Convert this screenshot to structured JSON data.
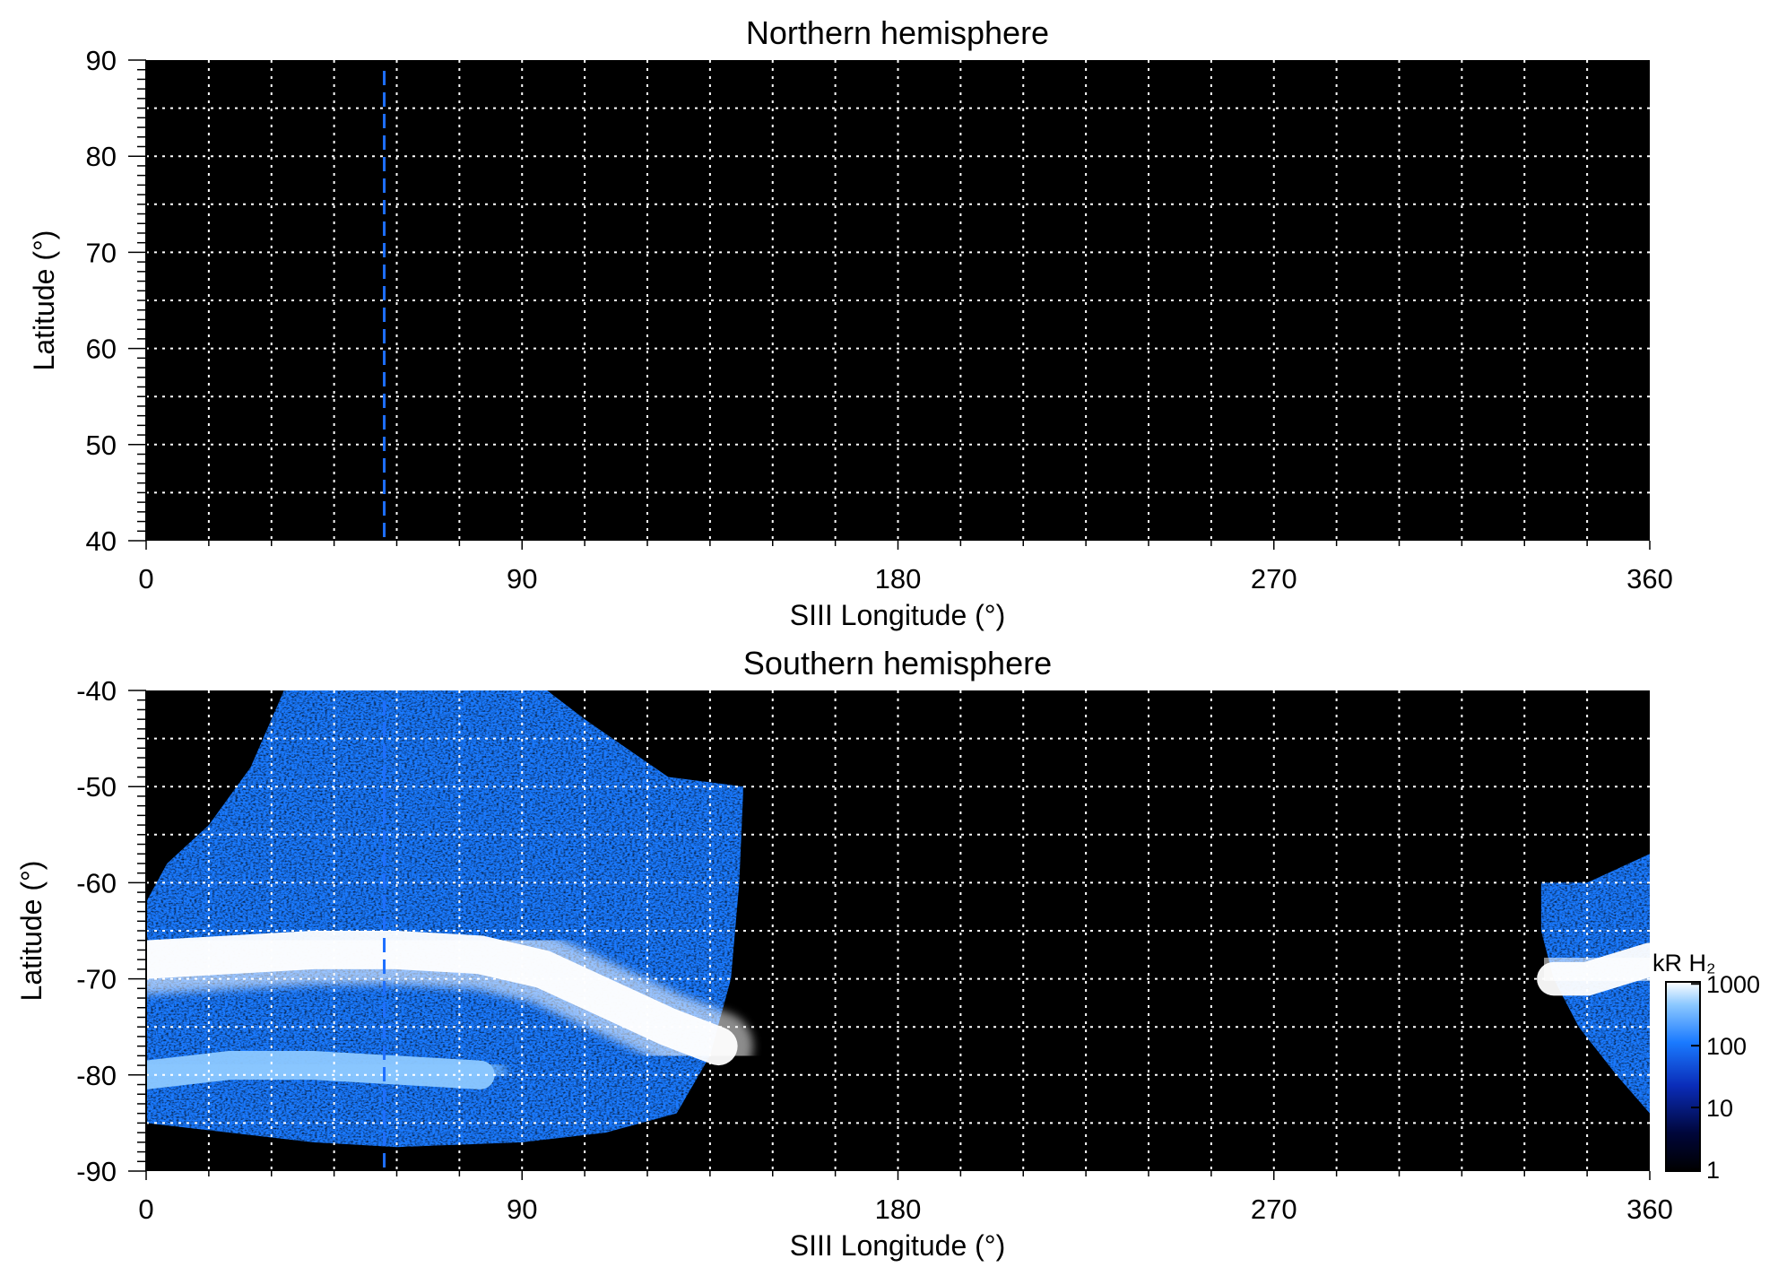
{
  "chart_data": [
    {
      "type": "heatmap",
      "title": "Northern hemisphere",
      "xlabel": "SIII Longitude (°)",
      "ylabel": "Latitude (°)",
      "xlim": [
        0,
        360
      ],
      "ylim": [
        40,
        90
      ],
      "x_ticks": [
        "0",
        "90",
        "180",
        "270",
        "360"
      ],
      "y_ticks": [
        "40",
        "50",
        "60",
        "70",
        "80",
        "90"
      ],
      "grid": true,
      "grid_style": "dotted white",
      "background": "#000000",
      "marker_line": {
        "longitude": 57,
        "color": "#1e6fff",
        "style": "dashed"
      },
      "emission": []
    },
    {
      "type": "heatmap",
      "title": "Southern hemisphere",
      "xlabel": "SIII Longitude (°)",
      "ylabel": "Latitude (°)",
      "xlim": [
        0,
        360
      ],
      "ylim": [
        -90,
        -40
      ],
      "x_ticks": [
        "0",
        "90",
        "180",
        "270",
        "360"
      ],
      "y_ticks": [
        "-40",
        "-50",
        "-60",
        "-70",
        "-80",
        "-90"
      ],
      "grid": true,
      "grid_style": "dotted white",
      "background": "#000000",
      "marker_line": {
        "longitude": 57,
        "color": "#1e6fff",
        "style": "dashed"
      },
      "emission": [
        {
          "region": "main-emission-region",
          "outline": [
            [
              0,
              -62
            ],
            [
              5,
              -58
            ],
            [
              15,
              -54
            ],
            [
              25,
              -48
            ],
            [
              30,
              -43
            ],
            [
              33,
              -40
            ],
            [
              96,
              -40
            ],
            [
              105,
              -43
            ],
            [
              115,
              -46
            ],
            [
              125,
              -49
            ],
            [
              143,
              -50
            ],
            [
              142,
              -60
            ],
            [
              140,
              -70
            ],
            [
              135,
              -78
            ],
            [
              127,
              -84
            ],
            [
              110,
              -86
            ],
            [
              90,
              -87
            ],
            [
              60,
              -87.5
            ],
            [
              40,
              -87
            ],
            [
              20,
              -86
            ],
            [
              0,
              -85
            ]
          ],
          "level_kR": 60
        },
        {
          "region": "main-oval-band",
          "band": [
            [
              0,
              -68
            ],
            [
              20,
              -67.5
            ],
            [
              40,
              -67
            ],
            [
              60,
              -67
            ],
            [
              80,
              -67.5
            ],
            [
              95,
              -69
            ],
            [
              110,
              -72
            ],
            [
              125,
              -75
            ],
            [
              137,
              -77
            ]
          ],
          "width_deg": 4,
          "level_kR": 1000
        },
        {
          "region": "secondary-band",
          "band": [
            [
              0,
              -80
            ],
            [
              20,
              -79
            ],
            [
              40,
              -79
            ],
            [
              60,
              -79.5
            ],
            [
              80,
              -80
            ]
          ],
          "width_deg": 3,
          "level_kR": 300
        },
        {
          "region": "right-edge-emission-region",
          "outline": [
            [
              334,
              -60
            ],
            [
              345,
              -60
            ],
            [
              360,
              -57
            ],
            [
              360,
              -84
            ],
            [
              352,
              -80
            ],
            [
              343,
              -75
            ],
            [
              337,
              -70
            ],
            [
              334,
              -65
            ]
          ],
          "level_kR": 60
        },
        {
          "region": "right-edge-oval-band",
          "band": [
            [
              337,
              -70
            ],
            [
              345,
              -70
            ],
            [
              360,
              -68
            ]
          ],
          "width_deg": 3.5,
          "level_kR": 900
        }
      ]
    }
  ],
  "colorbar": {
    "label": "kR H₂",
    "scale": "log",
    "range": [
      1,
      1000
    ],
    "ticks": [
      "1",
      "10",
      "100",
      "1000"
    ],
    "colors": [
      "#000000",
      "#00063a",
      "#0a2cb8",
      "#1a7aff",
      "#8cc8ff",
      "#ffffff"
    ]
  }
}
